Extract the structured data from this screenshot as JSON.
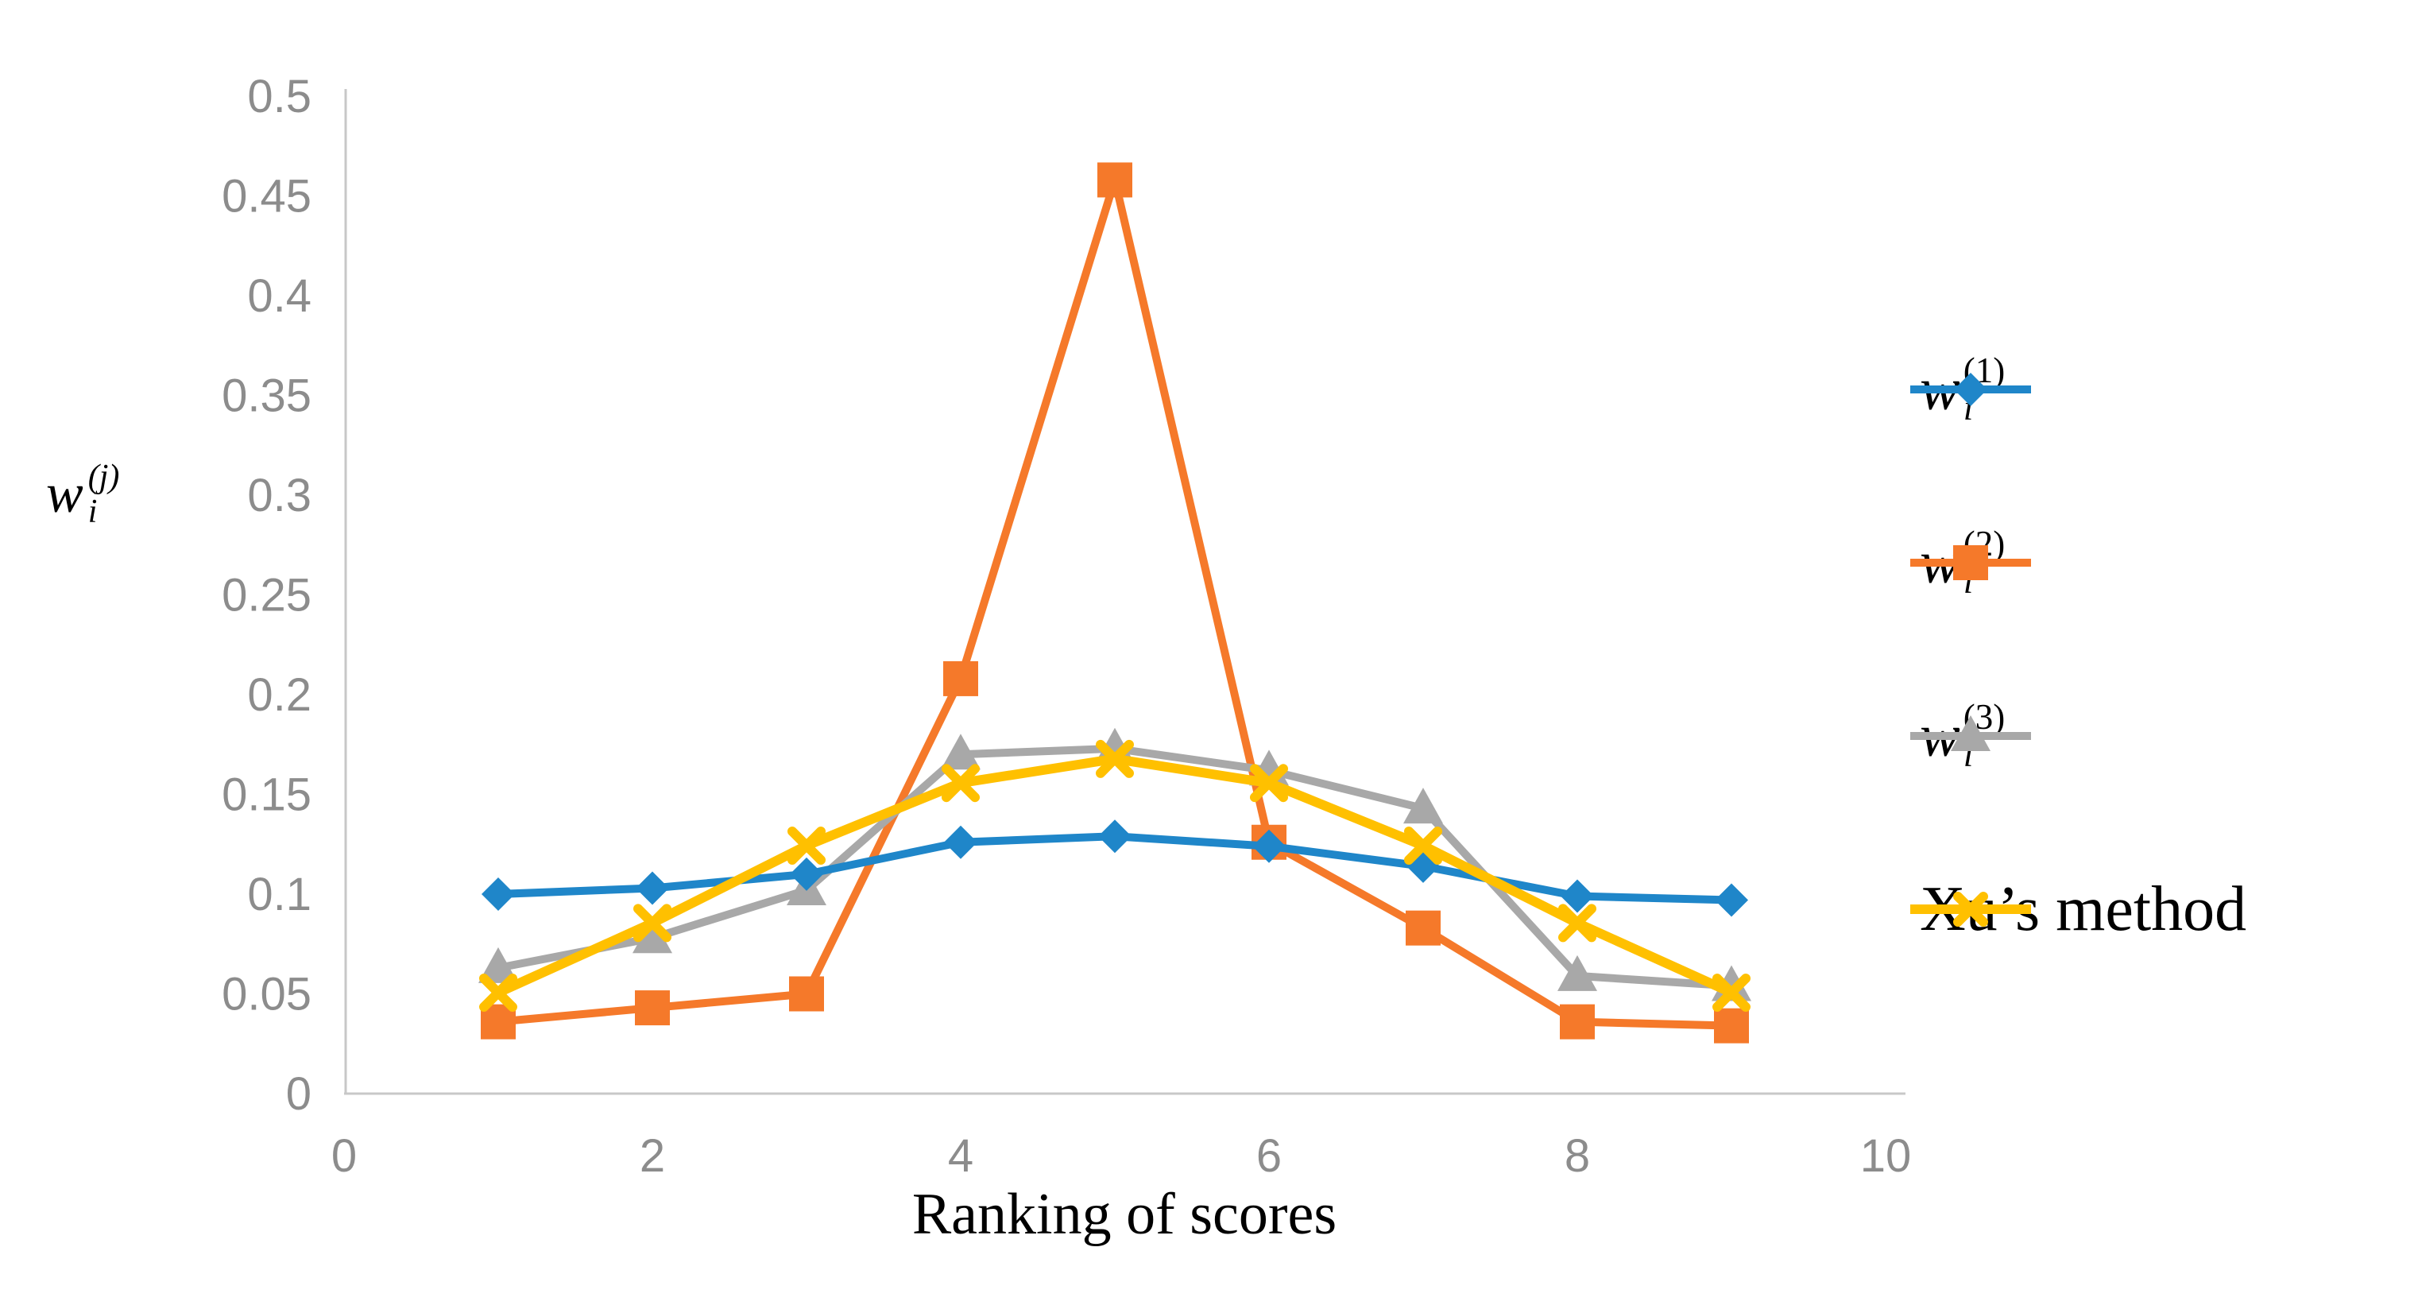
{
  "chart_data": {
    "type": "line",
    "title": "",
    "xlabel": "Ranking of scores",
    "ylabel": {
      "base": "w",
      "sub": "i",
      "sup": "(j)"
    },
    "x": [
      1,
      2,
      3,
      4,
      5,
      6,
      7,
      8,
      9
    ],
    "xlim": [
      0,
      10
    ],
    "ylim": [
      0,
      0.5
    ],
    "xticks": [
      0,
      2,
      4,
      6,
      8,
      10
    ],
    "xtick_labels": [
      "0",
      "2",
      "4",
      "6",
      "8",
      "10"
    ],
    "yticks": [
      0,
      0.05,
      0.1,
      0.15,
      0.2,
      0.25,
      0.3,
      0.35,
      0.4,
      0.45,
      0.5
    ],
    "ytick_labels": [
      "0",
      "0.05",
      "0.1",
      "0.15",
      "0.2",
      "0.25",
      "0.3",
      "0.35",
      "0.4",
      "0.45",
      "0.5"
    ],
    "grid": false,
    "legend_position": "right",
    "series": [
      {
        "name": "w_i_(1)",
        "label": {
          "base": "w",
          "sub": "i",
          "sup": "(1)"
        },
        "marker": "diamond",
        "color": "#1F86C9",
        "values": [
          0.1,
          0.103,
          0.11,
          0.126,
          0.129,
          0.124,
          0.114,
          0.099,
          0.097
        ]
      },
      {
        "name": "w_i_(2)",
        "label": {
          "base": "w",
          "sub": "i",
          "sup": "(2)"
        },
        "marker": "square",
        "color": "#F5792A",
        "values": [
          0.036,
          0.043,
          0.05,
          0.208,
          0.458,
          0.126,
          0.083,
          0.036,
          0.034
        ]
      },
      {
        "name": "w_i_(3)",
        "label": {
          "base": "w",
          "sub": "i",
          "sup": "(3)"
        },
        "marker": "triangle-up",
        "color": "#A8A8A8",
        "values": [
          0.063,
          0.078,
          0.102,
          0.17,
          0.173,
          0.162,
          0.143,
          0.059,
          0.054
        ]
      },
      {
        "name": "Xu's method",
        "label": {
          "base": "Xu’s method",
          "sub": "",
          "sup": ""
        },
        "marker": "x",
        "color": "#FFC000",
        "values": [
          0.0506,
          0.0855,
          0.1243,
          0.1557,
          0.1678,
          0.1557,
          0.1243,
          0.0855,
          0.0506
        ]
      }
    ]
  },
  "colors": {
    "background": "#FFFFFF",
    "axis_line": "#C8C8C8",
    "tick_text": "#8C8C8C",
    "title_text": "#000000"
  }
}
